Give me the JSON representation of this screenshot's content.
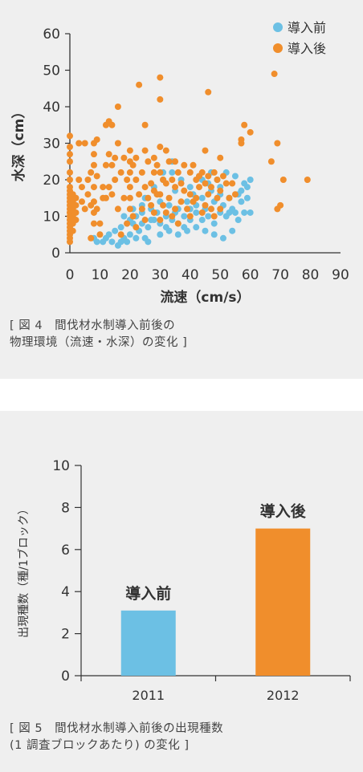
{
  "colors": {
    "before": "#6cc0e4",
    "after": "#f08e2c",
    "axis": "#333333",
    "text": "#333333",
    "panel_bg": "#efefef"
  },
  "figure4": {
    "caption_lines": [
      "[ 図 4　間伐材水制導入前後の",
      "物理環境（流速・水深）の変化 ]"
    ]
  },
  "figure5": {
    "caption_lines": [
      "[ 図 5　間伐材水制導入前後の出現種数",
      "(1 調査ブロックあたり) の変化 ]"
    ]
  },
  "chart_data": [
    {
      "type": "scatter",
      "title": "",
      "xlabel": "流速（cm/s）",
      "ylabel": "水深（cm）",
      "xlim": [
        0,
        90
      ],
      "ylim": [
        0,
        60
      ],
      "xticks": [
        "0",
        "10",
        "20",
        "30",
        "40",
        "50",
        "60",
        "70",
        "80",
        "90"
      ],
      "yticks": [
        "0",
        "10",
        "20",
        "30",
        "40",
        "50",
        "60"
      ],
      "legend_position": "top-right",
      "series": [
        {
          "name": "導入前",
          "color": "#6cc0e4",
          "points": [
            [
              8,
              4
            ],
            [
              9,
              3
            ],
            [
              12,
              4
            ],
            [
              13,
              5
            ],
            [
              14,
              3
            ],
            [
              16,
              2
            ],
            [
              17,
              3
            ],
            [
              18,
              4
            ],
            [
              19,
              3
            ],
            [
              20,
              5
            ],
            [
              22,
              4
            ],
            [
              23,
              6
            ],
            [
              25,
              4
            ],
            [
              26,
              3
            ],
            [
              15,
              6
            ],
            [
              17,
              7
            ],
            [
              19,
              8
            ],
            [
              20,
              9
            ],
            [
              22,
              10
            ],
            [
              24,
              8
            ],
            [
              26,
              7
            ],
            [
              28,
              9
            ],
            [
              30,
              8
            ],
            [
              32,
              7
            ],
            [
              34,
              9
            ],
            [
              36,
              8
            ],
            [
              38,
              7
            ],
            [
              40,
              9
            ],
            [
              18,
              10
            ],
            [
              21,
              12
            ],
            [
              24,
              13
            ],
            [
              27,
              12
            ],
            [
              30,
              14
            ],
            [
              33,
              13
            ],
            [
              36,
              12
            ],
            [
              39,
              14
            ],
            [
              42,
              13
            ],
            [
              45,
              12
            ],
            [
              48,
              14
            ],
            [
              51,
              13
            ],
            [
              54,
              12
            ],
            [
              57,
              14
            ],
            [
              28,
              18
            ],
            [
              31,
              20
            ],
            [
              34,
              22
            ],
            [
              37,
              20
            ],
            [
              40,
              18
            ],
            [
              43,
              21
            ],
            [
              46,
              19
            ],
            [
              49,
              20
            ],
            [
              52,
              22
            ],
            [
              55,
              21
            ],
            [
              58,
              19
            ],
            [
              60,
              20
            ],
            [
              30,
              5
            ],
            [
              33,
              6
            ],
            [
              36,
              5
            ],
            [
              39,
              6
            ],
            [
              42,
              7
            ],
            [
              45,
              6
            ],
            [
              48,
              5
            ],
            [
              51,
              4
            ],
            [
              54,
              6
            ],
            [
              25,
              15
            ],
            [
              29,
              16
            ],
            [
              35,
              17
            ],
            [
              41,
              16
            ],
            [
              44,
              15
            ],
            [
              47,
              17
            ],
            [
              50,
              16
            ],
            [
              53,
              15
            ],
            [
              56,
              16
            ],
            [
              59,
              15
            ],
            [
              38,
              10
            ],
            [
              42,
              11
            ],
            [
              46,
              10
            ],
            [
              50,
              11
            ],
            [
              44,
              9
            ],
            [
              48,
              8
            ],
            [
              52,
              10
            ],
            [
              55,
              11
            ],
            [
              40,
              12
            ],
            [
              35,
              11
            ],
            [
              31,
              22
            ],
            [
              34,
              25
            ],
            [
              44,
              20
            ],
            [
              47,
              22
            ],
            [
              50,
              18
            ],
            [
              58,
              11
            ],
            [
              60,
              11
            ],
            [
              56,
              9
            ],
            [
              53,
              11
            ],
            [
              57,
              17
            ],
            [
              59,
              18
            ],
            [
              21,
              8
            ],
            [
              24,
              11
            ],
            [
              27,
              9
            ],
            [
              29,
              11
            ],
            [
              32,
              10
            ],
            [
              11,
              3
            ]
          ]
        },
        {
          "name": "導入後",
          "color": "#f08e2c",
          "points": [
            [
              0,
              32
            ],
            [
              0,
              29
            ],
            [
              0,
              27
            ],
            [
              0,
              25
            ],
            [
              0,
              22
            ],
            [
              0,
              20
            ],
            [
              0,
              18
            ],
            [
              0,
              17
            ],
            [
              0,
              16
            ],
            [
              0,
              15
            ],
            [
              0,
              14
            ],
            [
              0,
              13
            ],
            [
              0,
              12
            ],
            [
              0,
              11
            ],
            [
              0,
              10
            ],
            [
              0,
              9
            ],
            [
              0,
              8
            ],
            [
              0,
              7
            ],
            [
              0,
              6
            ],
            [
              0,
              5
            ],
            [
              0,
              4
            ],
            [
              0,
              3
            ],
            [
              1,
              16
            ],
            [
              1,
              14
            ],
            [
              1,
              12
            ],
            [
              1,
              10
            ],
            [
              1,
              8
            ],
            [
              1,
              6
            ],
            [
              2,
              15
            ],
            [
              2,
              13
            ],
            [
              2,
              11
            ],
            [
              2,
              9
            ],
            [
              3,
              30
            ],
            [
              3,
              20
            ],
            [
              4,
              18
            ],
            [
              4,
              14
            ],
            [
              5,
              30
            ],
            [
              5,
              12
            ],
            [
              6,
              20
            ],
            [
              6,
              16
            ],
            [
              7,
              22
            ],
            [
              7,
              13
            ],
            [
              7,
              4
            ],
            [
              8,
              30
            ],
            [
              8,
              27
            ],
            [
              8,
              24
            ],
            [
              8,
              18
            ],
            [
              8,
              14
            ],
            [
              8,
              11
            ],
            [
              8,
              8
            ],
            [
              9,
              31
            ],
            [
              9,
              21
            ],
            [
              9,
              12
            ],
            [
              10,
              8
            ],
            [
              10,
              5
            ],
            [
              11,
              18
            ],
            [
              11,
              15
            ],
            [
              12,
              35
            ],
            [
              12,
              24
            ],
            [
              12,
              15
            ],
            [
              13,
              36
            ],
            [
              13,
              27
            ],
            [
              13,
              18
            ],
            [
              14,
              35
            ],
            [
              14,
              24
            ],
            [
              14,
              16
            ],
            [
              15,
              26
            ],
            [
              15,
              20
            ],
            [
              16,
              40
            ],
            [
              16,
              30
            ],
            [
              16,
              12
            ],
            [
              17,
              22
            ],
            [
              17,
              5
            ],
            [
              18,
              26
            ],
            [
              18,
              15
            ],
            [
              19,
              20
            ],
            [
              19,
              8
            ],
            [
              20,
              28
            ],
            [
              20,
              25
            ],
            [
              20,
              22
            ],
            [
              20,
              18
            ],
            [
              20,
              15
            ],
            [
              20,
              12
            ],
            [
              21,
              24
            ],
            [
              21,
              10
            ],
            [
              22,
              26
            ],
            [
              22,
              20
            ],
            [
              22,
              7
            ],
            [
              23,
              46
            ],
            [
              23,
              16
            ],
            [
              24,
              22
            ],
            [
              24,
              12
            ],
            [
              25,
              35
            ],
            [
              25,
              28
            ],
            [
              25,
              18
            ],
            [
              25,
              9
            ],
            [
              26,
              25
            ],
            [
              26,
              15
            ],
            [
              27,
              19
            ],
            [
              27,
              13
            ],
            [
              28,
              26
            ],
            [
              28,
              22
            ],
            [
              28,
              17
            ],
            [
              28,
              11
            ],
            [
              29,
              24
            ],
            [
              29,
              16
            ],
            [
              30,
              48
            ],
            [
              30,
              42
            ],
            [
              30,
              29
            ],
            [
              30,
              22
            ],
            [
              30,
              16
            ],
            [
              30,
              9
            ],
            [
              31,
              20
            ],
            [
              31,
              13
            ],
            [
              32,
              28
            ],
            [
              32,
              19
            ],
            [
              32,
              11
            ],
            [
              33,
              25
            ],
            [
              33,
              15
            ],
            [
              34,
              20
            ],
            [
              34,
              10
            ],
            [
              35,
              25
            ],
            [
              35,
              18
            ],
            [
              35,
              12
            ],
            [
              36,
              22
            ],
            [
              36,
              8
            ],
            [
              37,
              19
            ],
            [
              37,
              14
            ],
            [
              38,
              24
            ],
            [
              38,
              17
            ],
            [
              39,
              12
            ],
            [
              40,
              22
            ],
            [
              40,
              16
            ],
            [
              40,
              10
            ],
            [
              41,
              24
            ],
            [
              41,
              14
            ],
            [
              42,
              20
            ],
            [
              42,
              15
            ],
            [
              43,
              21
            ],
            [
              43,
              18
            ],
            [
              44,
              22
            ],
            [
              44,
              11
            ],
            [
              45,
              28
            ],
            [
              45,
              19
            ],
            [
              45,
              13
            ],
            [
              46,
              44
            ],
            [
              46,
              21
            ],
            [
              46,
              16
            ],
            [
              47,
              18
            ],
            [
              47,
              12
            ],
            [
              48,
              22
            ],
            [
              48,
              10
            ],
            [
              49,
              20
            ],
            [
              49,
              15
            ],
            [
              50,
              26
            ],
            [
              50,
              17
            ],
            [
              50,
              12
            ],
            [
              51,
              21
            ],
            [
              52,
              19
            ],
            [
              53,
              15
            ],
            [
              54,
              19
            ],
            [
              55,
              16
            ],
            [
              57,
              30
            ],
            [
              57,
              31
            ],
            [
              58,
              35
            ],
            [
              60,
              33
            ],
            [
              67,
              25
            ],
            [
              68,
              49
            ],
            [
              69,
              30
            ],
            [
              69,
              12
            ],
            [
              70,
              13
            ],
            [
              71,
              20
            ],
            [
              79,
              20
            ]
          ]
        }
      ]
    },
    {
      "type": "bar",
      "title": "",
      "ylabel": "出現種数（種/1ブロック）",
      "categories": [
        "2011",
        "2012"
      ],
      "values": [
        3.1,
        7.0
      ],
      "bar_labels": [
        "導入前",
        "導入後"
      ],
      "bar_colors": [
        "#6cc0e4",
        "#f08e2c"
      ],
      "ylim": [
        0,
        10
      ],
      "yticks": [
        "0",
        "2",
        "4",
        "6",
        "8",
        "10"
      ]
    }
  ]
}
